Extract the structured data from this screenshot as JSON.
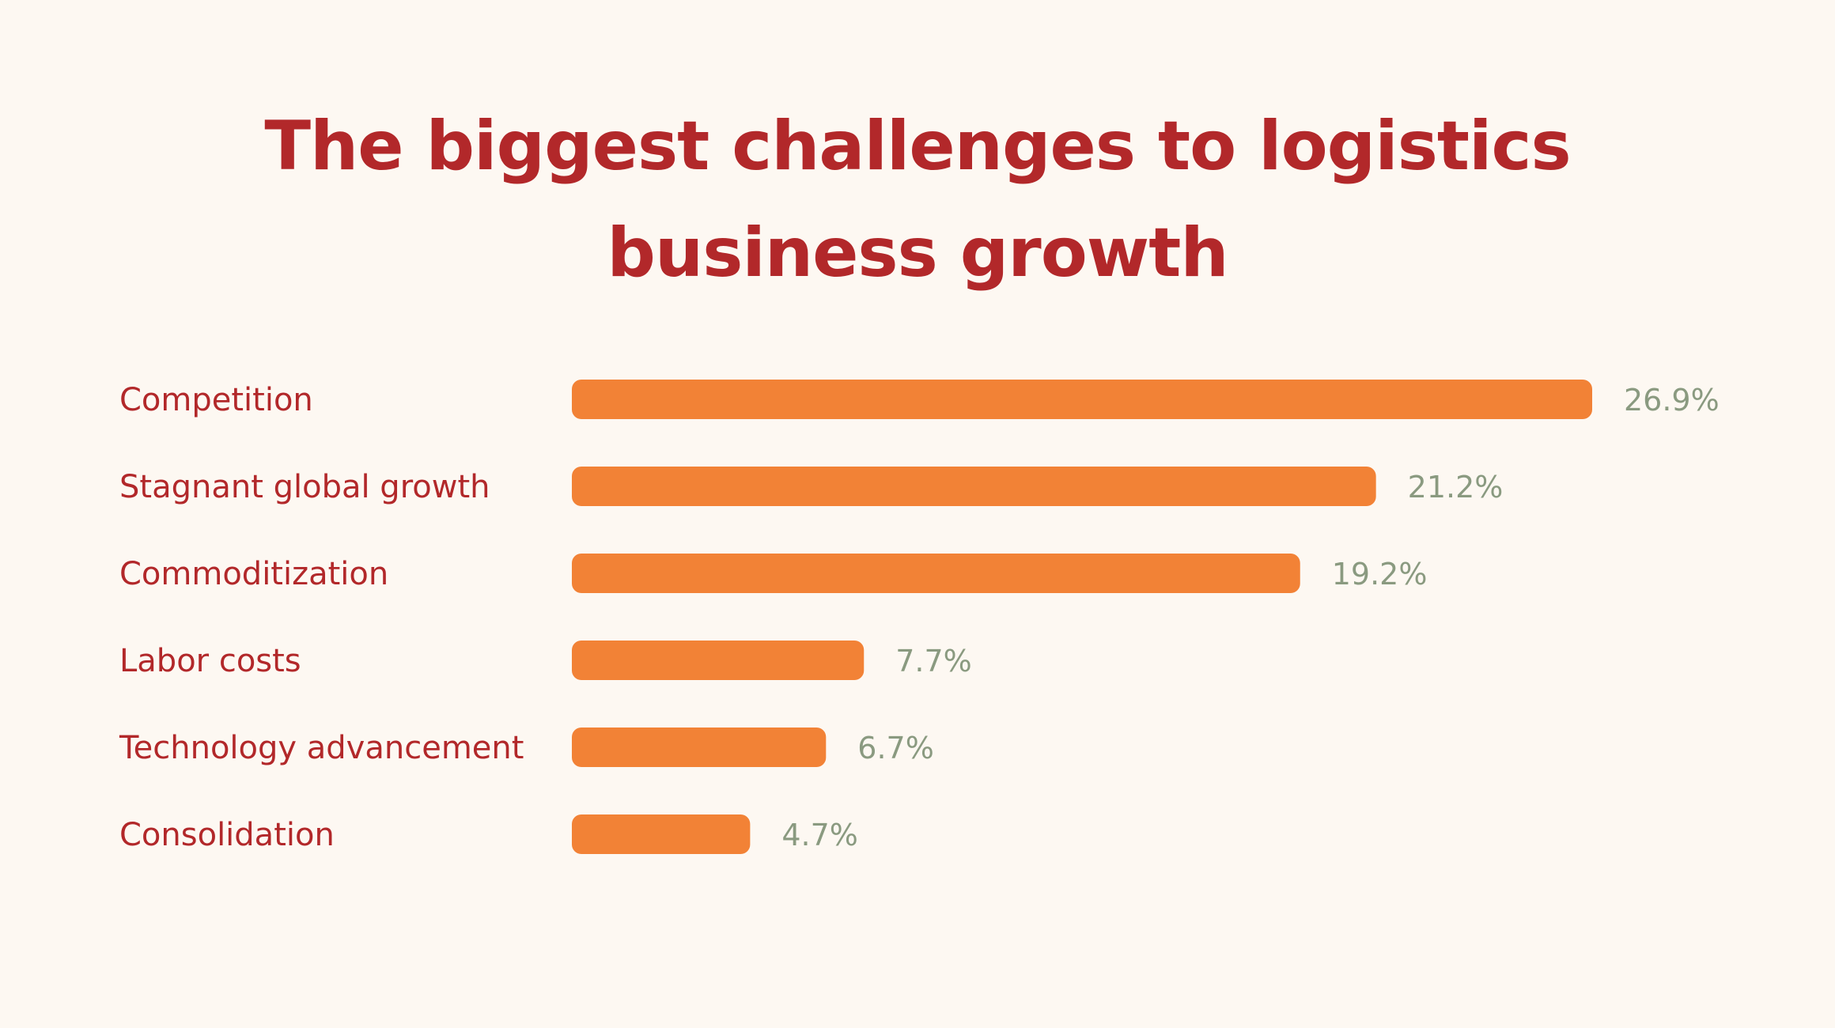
{
  "colors": {
    "background": "#fdf8f2",
    "title": "#b2282a",
    "category_label": "#b2282a",
    "bar": "#f28236",
    "value_label": "#8a9a80"
  },
  "chart_data": {
    "type": "bar",
    "orientation": "horizontal",
    "title": "The biggest challenges to logistics business growth",
    "title_lines": [
      "The biggest challenges to logistics",
      "business growth"
    ],
    "categories": [
      "Competition",
      "Stagnant global growth",
      "Commoditization",
      "Labor costs",
      "Technology advancement",
      "Consolidation"
    ],
    "values": [
      26.9,
      21.2,
      19.2,
      7.7,
      6.7,
      4.7
    ],
    "value_labels": [
      "26.9%",
      "21.2%",
      "19.2%",
      "7.7%",
      "6.7%",
      "4.7%"
    ],
    "unit": "%",
    "xlim": [
      0,
      26.9
    ],
    "grid": false,
    "legend": "none"
  }
}
